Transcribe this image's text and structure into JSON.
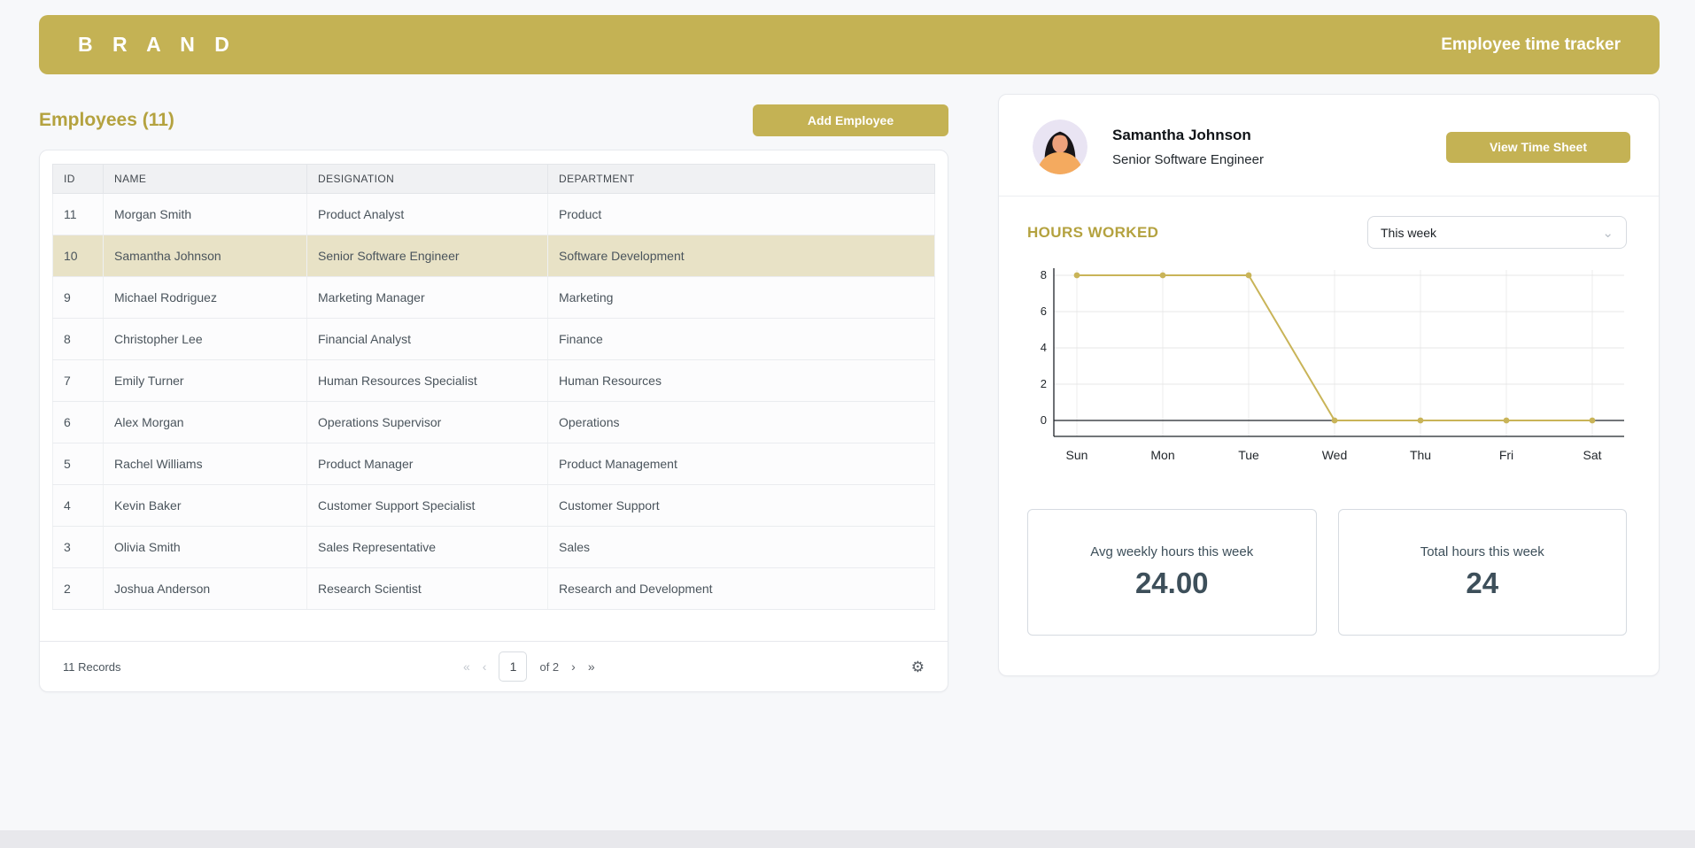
{
  "header": {
    "logo": "B R A N D",
    "app_title": "Employee time tracker"
  },
  "colors": {
    "brand_gold": "#c4b254",
    "gold_text": "#b4a23f",
    "selected_row_bg": "#e8e2c6",
    "stat_text": "#3d4f5a",
    "chart_line": "#c9b458"
  },
  "employees_section": {
    "title": "Employees (11)",
    "add_button_label": "Add Employee",
    "table": {
      "columns": [
        "ID",
        "NAME",
        "DESIGNATION",
        "DEPARTMENT"
      ],
      "rows": [
        {
          "id": "11",
          "name": "Morgan Smith",
          "designation": "Product Analyst",
          "department": "Product",
          "selected": false
        },
        {
          "id": "10",
          "name": "Samantha Johnson",
          "designation": "Senior Software Engineer",
          "department": "Software Development",
          "selected": true
        },
        {
          "id": "9",
          "name": "Michael Rodriguez",
          "designation": "Marketing Manager",
          "department": "Marketing",
          "selected": false
        },
        {
          "id": "8",
          "name": "Christopher Lee",
          "designation": "Financial Analyst",
          "department": "Finance",
          "selected": false
        },
        {
          "id": "7",
          "name": "Emily Turner",
          "designation": "Human Resources Specialist",
          "department": "Human Resources",
          "selected": false
        },
        {
          "id": "6",
          "name": "Alex Morgan",
          "designation": "Operations Supervisor",
          "department": "Operations",
          "selected": false
        },
        {
          "id": "5",
          "name": "Rachel Williams",
          "designation": "Product Manager",
          "department": "Product Management",
          "selected": false
        },
        {
          "id": "4",
          "name": "Kevin Baker",
          "designation": "Customer Support Specialist",
          "department": "Customer Support",
          "selected": false
        },
        {
          "id": "3",
          "name": "Olivia Smith",
          "designation": "Sales Representative",
          "department": "Sales",
          "selected": false
        },
        {
          "id": "2",
          "name": "Joshua Anderson",
          "designation": "Research Scientist",
          "department": "Research and Development",
          "selected": false
        }
      ]
    },
    "footer": {
      "records_label": "11 Records",
      "first_label": "«",
      "prev_label": "‹",
      "current_page": "1",
      "of_label": "of 2",
      "next_label": "›",
      "last_label": "»",
      "settings_icon": "⚙"
    }
  },
  "profile": {
    "avatar_icon": "woman-avatar",
    "name": "Samantha Johnson",
    "title": "Senior Software Engineer",
    "view_time_sheet_label": "View Time Sheet"
  },
  "hours_section": {
    "title": "HOURS WORKED",
    "range_selected": "This week",
    "chevron_icon": "⌄"
  },
  "chart_data": {
    "type": "line",
    "title": "Hours worked this week",
    "x": [
      "Sun",
      "Mon",
      "Tue",
      "Wed",
      "Thu",
      "Fri",
      "Sat"
    ],
    "series": [
      {
        "name": "Hours worked",
        "values": [
          8,
          8,
          8,
          0,
          0,
          0,
          0
        ]
      }
    ],
    "xlabel": "",
    "ylabel": "",
    "ylim": [
      0,
      8
    ],
    "yticks": [
      0,
      2,
      4,
      6,
      8
    ],
    "grid": true,
    "legend": false,
    "line_color": "#c9b458",
    "marker": "circle"
  },
  "stats": [
    {
      "label": "Avg weekly hours this week",
      "value": "24.00"
    },
    {
      "label": "Total hours this week",
      "value": "24"
    }
  ]
}
